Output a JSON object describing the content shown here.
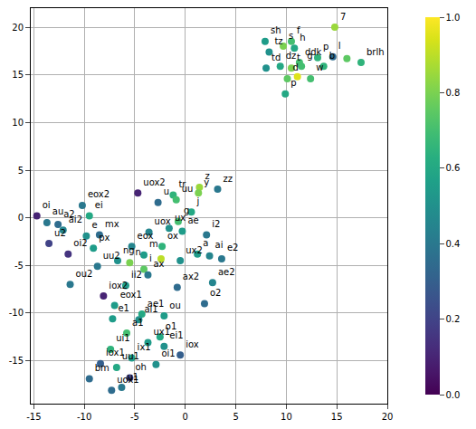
{
  "chart_data": {
    "type": "scatter",
    "color": "viridis",
    "grid": true,
    "labels": [
      "7",
      "sh",
      "f",
      "s",
      "h",
      "tz",
      "ddk",
      "p",
      "g",
      "b",
      "l",
      null,
      "brlh",
      "td",
      "dz",
      "t",
      "d",
      null,
      "w",
      "p",
      "zz",
      "z",
      "y",
      "tr",
      "uu",
      "uox2",
      "u",
      "j",
      "oi",
      "eox2",
      "ei",
      "au",
      "a2",
      "ai2",
      "u2",
      "e",
      "mx",
      "px",
      "oi2",
      "uu2",
      "ou2",
      "ng",
      "eox",
      "uox",
      "ux",
      "ae",
      "i2",
      "ox",
      null,
      "g",
      "m",
      "n",
      "i",
      "ax",
      "ux2",
      "a",
      "ai",
      "e2",
      "ax2",
      "ae2",
      "o2",
      "ii2",
      "iox2",
      "eox1",
      "e1",
      "ae1",
      "ai1",
      "ou",
      "a1",
      "o1",
      "ui1",
      "ux1",
      "ix1",
      "ei1",
      "iox",
      "oi1",
      "iox1",
      "uu1",
      "u1",
      "bm",
      "oh",
      "uox1"
    ],
    "x": [
      14.8,
      7.9,
      10.5,
      9.7,
      10.8,
      8.3,
      11.3,
      13.1,
      11.5,
      13.7,
      14.6,
      16.0,
      17.4,
      8.0,
      9.4,
      10.5,
      10.1,
      11.1,
      12.4,
      9.9,
      3.2,
      1.4,
      1.3,
      -1.2,
      -0.9,
      -4.7,
      -2.7,
      0.6,
      -14.7,
      -10.2,
      -9.5,
      -13.7,
      -12.6,
      -12.1,
      -13.5,
      -9.8,
      -8.5,
      -9.1,
      -11.6,
      -8.7,
      -11.4,
      -6.7,
      -5.3,
      -3.6,
      -1.6,
      -0.3,
      2.1,
      -2.3,
      -2.4,
      -0.7,
      -4.1,
      -5.5,
      -4.1,
      -3.7,
      -0.5,
      1.2,
      2.4,
      3.6,
      -0.8,
      2.7,
      1.9,
      -5.9,
      -8.1,
      -7.0,
      -7.2,
      -4.3,
      -4.6,
      -2.1,
      -5.8,
      -2.5,
      -7.4,
      -3.7,
      -5.3,
      -2.1,
      -0.5,
      -2.9,
      -8.4,
      -6.8,
      -6.3,
      -9.5,
      -5.5,
      -7.3
    ],
    "y": [
      20.0,
      18.5,
      18.5,
      18.0,
      17.8,
      17.4,
      16.3,
      16.8,
      15.9,
      15.9,
      16.9,
      16.7,
      16.3,
      15.7,
      15.9,
      15.7,
      14.6,
      14.8,
      14.6,
      13.0,
      3.0,
      3.2,
      2.6,
      2.4,
      1.9,
      2.6,
      1.6,
      0.6,
      0.2,
      1.3,
      0.2,
      -0.5,
      -0.7,
      -1.3,
      -2.7,
      -1.9,
      -1.8,
      -3.2,
      -3.8,
      -5.1,
      -7.0,
      -4.5,
      -3.0,
      -1.5,
      -1.1,
      -1.4,
      -1.8,
      -3.0,
      -4.3,
      -0.4,
      -3.9,
      -4.7,
      -5.4,
      -6.0,
      -4.5,
      -3.8,
      -4.0,
      -4.3,
      -7.3,
      -6.8,
      -9.0,
      -7.1,
      -8.2,
      -9.2,
      -10.6,
      -10.1,
      -10.7,
      -10.3,
      -12.1,
      -12.5,
      -13.8,
      -13.1,
      -14.7,
      -13.5,
      -14.4,
      -15.4,
      -15.3,
      -15.7,
      -17.8,
      -16.9,
      -16.8,
      -18.1
    ],
    "color_values": [
      0.85,
      0.55,
      0.7,
      0.8,
      0.6,
      0.5,
      0.7,
      0.65,
      0.7,
      0.65,
      0.35,
      0.75,
      0.65,
      0.5,
      0.6,
      0.8,
      0.75,
      0.95,
      0.7,
      0.6,
      0.4,
      0.85,
      0.8,
      0.65,
      0.7,
      0.1,
      0.35,
      0.6,
      0.1,
      0.4,
      0.6,
      0.4,
      0.35,
      0.45,
      0.2,
      0.5,
      0.35,
      0.55,
      0.15,
      0.4,
      0.4,
      0.5,
      0.45,
      0.45,
      0.5,
      0.55,
      0.4,
      0.65,
      0.9,
      0.7,
      0.55,
      0.8,
      0.75,
      0.4,
      0.5,
      0.55,
      0.45,
      0.4,
      0.35,
      0.45,
      0.35,
      0.55,
      0.1,
      0.55,
      0.55,
      0.6,
      0.5,
      0.55,
      0.7,
      0.6,
      0.65,
      0.55,
      0.55,
      0.5,
      0.3,
      0.5,
      0.3,
      0.6,
      0.4,
      0.35,
      0.2,
      0.35
    ],
    "xlim": [
      -15.3,
      20
    ],
    "ylim": [
      -19.5,
      22
    ],
    "xticks": [
      -15,
      -10,
      -5,
      0,
      5,
      10,
      15,
      20
    ],
    "yticks": [
      -15,
      -10,
      -5,
      0,
      5,
      10,
      15,
      20
    ],
    "colorbar": {
      "range": [
        0,
        1
      ],
      "ticks": [
        {
          "value": 0,
          "label": "0.0"
        },
        {
          "value": 0.2,
          "label": "0.2"
        },
        {
          "value": 0.4,
          "label": "0.4"
        },
        {
          "value": 0.6,
          "label": "0.6"
        },
        {
          "value": 0.8,
          "label": "0.8"
        },
        {
          "value": 1,
          "label": "1.0"
        }
      ]
    }
  }
}
